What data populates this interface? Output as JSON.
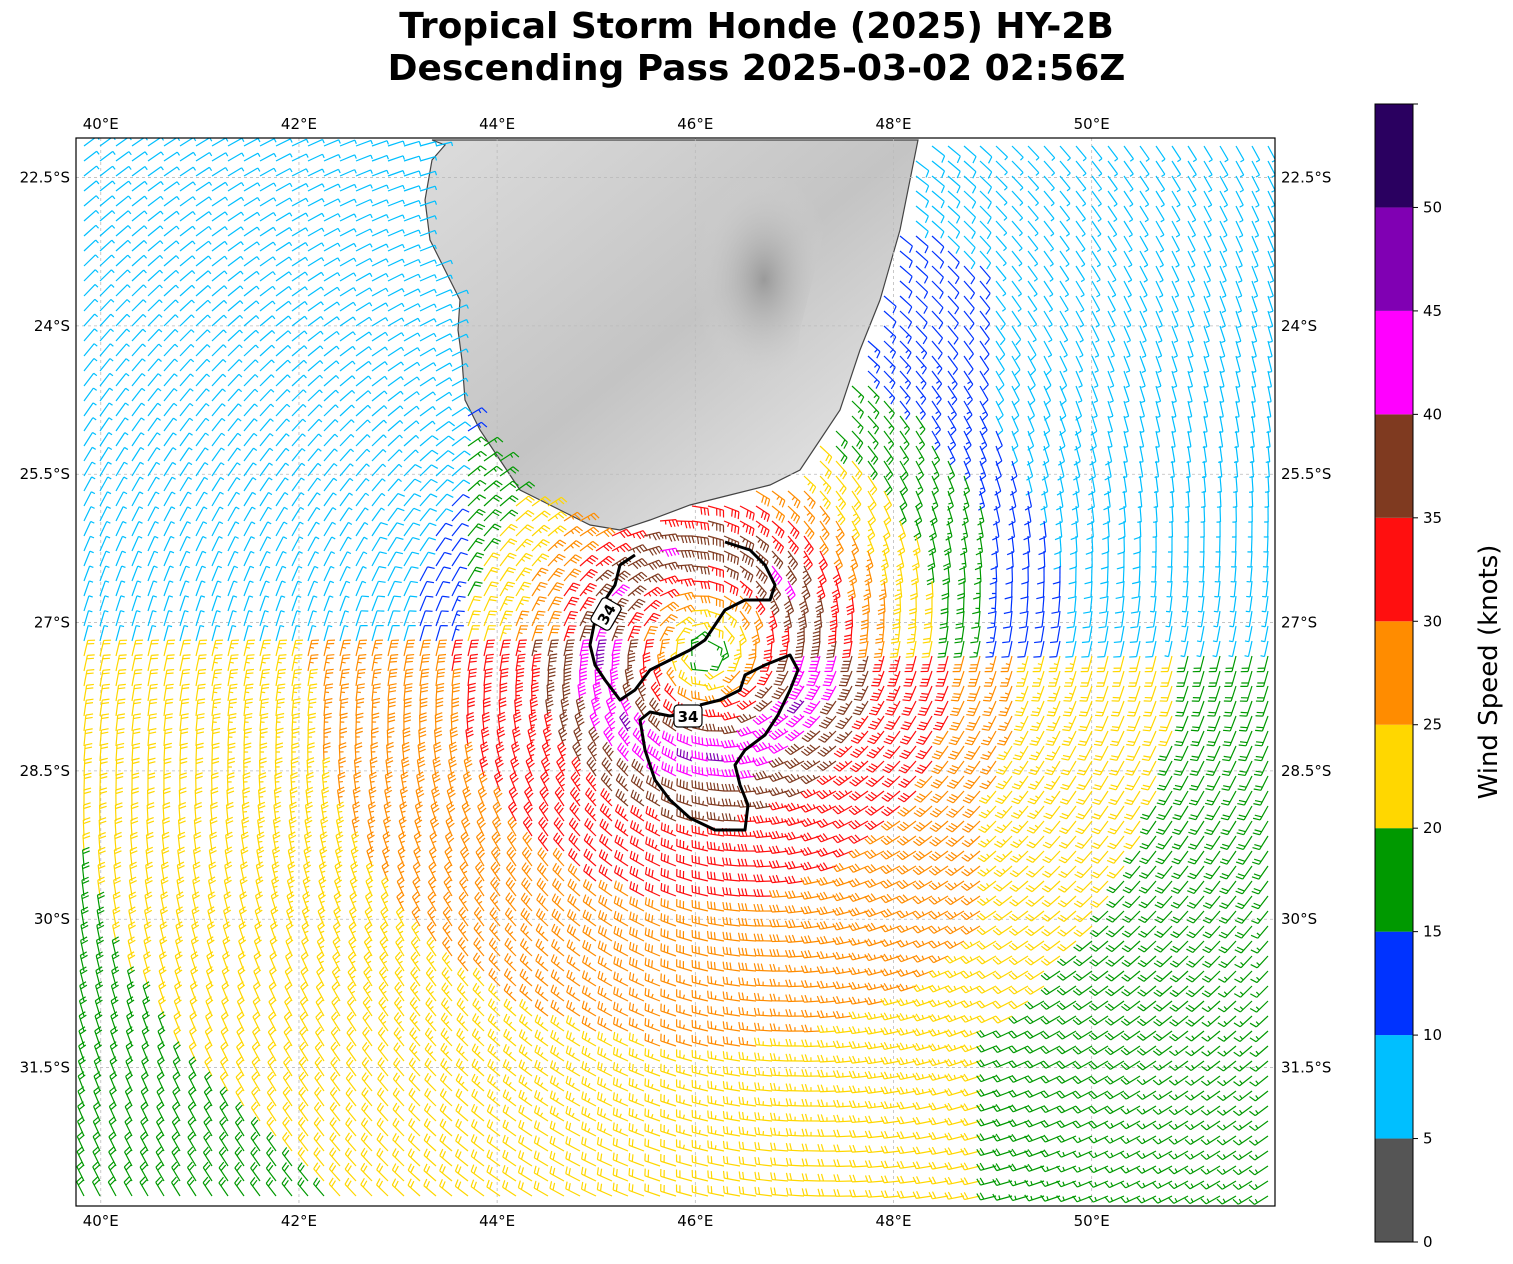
{
  "title": {
    "line1": "Tropical Storm Honde (2025) HY-2B",
    "line2": "Descending Pass 2025-03-02 02:56Z"
  },
  "map": {
    "lon_range": [
      39.75,
      51.85
    ],
    "lat_range": [
      -32.9,
      -22.1
    ],
    "lon_ticks": [
      "40°E",
      "42°E",
      "44°E",
      "46°E",
      "48°E",
      "50°E"
    ],
    "lon_tick_values": [
      40,
      42,
      44,
      46,
      48,
      50
    ],
    "lat_ticks": [
      "22.5°S",
      "24°S",
      "25.5°S",
      "27°S",
      "28.5°S",
      "30°S",
      "31.5°S"
    ],
    "lat_tick_values": [
      -22.5,
      -24,
      -25.5,
      -27,
      -28.5,
      -30,
      -31.5
    ],
    "grid": true,
    "land": "Madagascar (southern part), grayscale terrain",
    "storm_center": {
      "lon": 46.1,
      "lat": -27.3
    },
    "contour_34kt_labels": [
      "34",
      "34"
    ]
  },
  "colorbar": {
    "label": "Wind Speed (knots)",
    "tick_labels": [
      "0",
      "5",
      "10",
      "15",
      "20",
      "25",
      "30",
      "35",
      "40",
      "45",
      "50"
    ],
    "bins": [
      {
        "min": 0,
        "max": 5,
        "color": "#555555"
      },
      {
        "min": 5,
        "max": 10,
        "color": "#00bfff"
      },
      {
        "min": 10,
        "max": 15,
        "color": "#0033ff"
      },
      {
        "min": 15,
        "max": 20,
        "color": "#009900"
      },
      {
        "min": 20,
        "max": 25,
        "color": "#ffd700"
      },
      {
        "min": 25,
        "max": 30,
        "color": "#ff8c00"
      },
      {
        "min": 30,
        "max": 35,
        "color": "#ff0f0f"
      },
      {
        "min": 35,
        "max": 40,
        "color": "#7f3a20"
      },
      {
        "min": 40,
        "max": 45,
        "color": "#ff00ff"
      },
      {
        "min": 45,
        "max": 50,
        "color": "#8000b3"
      },
      {
        "min": 50,
        "max": 55,
        "color": "#2a0060"
      }
    ]
  }
}
